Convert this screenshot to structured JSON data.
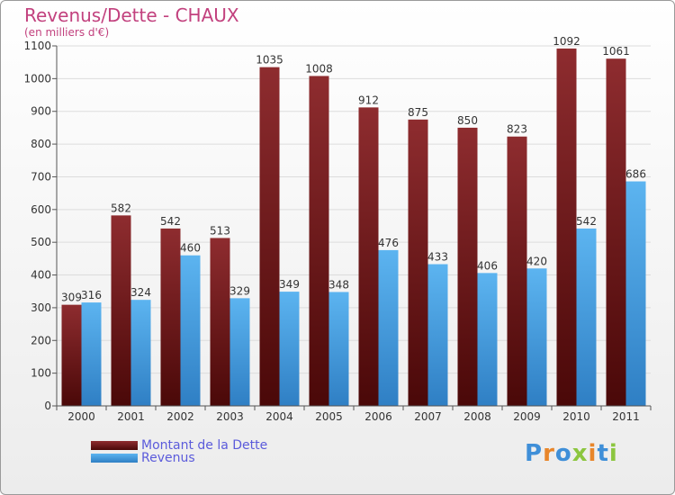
{
  "chart_data": {
    "type": "bar",
    "title": "Revenus/Dette - CHAUX",
    "subtitle": "(en milliers d'€)",
    "categories": [
      "2000",
      "2001",
      "2002",
      "2003",
      "2004",
      "2005",
      "2006",
      "2007",
      "2008",
      "2009",
      "2010",
      "2011"
    ],
    "series": [
      {
        "name": "Montant de la Dette",
        "color": "#7a1f22",
        "values": [
          309,
          582,
          542,
          513,
          1035,
          1008,
          912,
          875,
          850,
          823,
          1092,
          1061
        ]
      },
      {
        "name": "Revenus",
        "color": "#4aa6e8",
        "values": [
          316,
          324,
          460,
          329,
          349,
          348,
          476,
          433,
          406,
          420,
          542,
          686
        ]
      }
    ],
    "ylim": [
      0,
      1100
    ],
    "yticks": [
      0,
      100,
      200,
      300,
      400,
      500,
      600,
      700,
      800,
      900,
      1000,
      1100
    ],
    "grid": true,
    "legend_position": "bottom-left"
  },
  "logo": {
    "letters": [
      {
        "ch": "P",
        "color": "#3f8fd8"
      },
      {
        "ch": "r",
        "color": "#e8862a"
      },
      {
        "ch": "o",
        "color": "#3f8fd8"
      },
      {
        "ch": "x",
        "color": "#8cc63f"
      },
      {
        "ch": "i",
        "color": "#e8862a"
      },
      {
        "ch": "t",
        "color": "#3f8fd8"
      },
      {
        "ch": "i",
        "color": "#8cc63f"
      }
    ]
  }
}
